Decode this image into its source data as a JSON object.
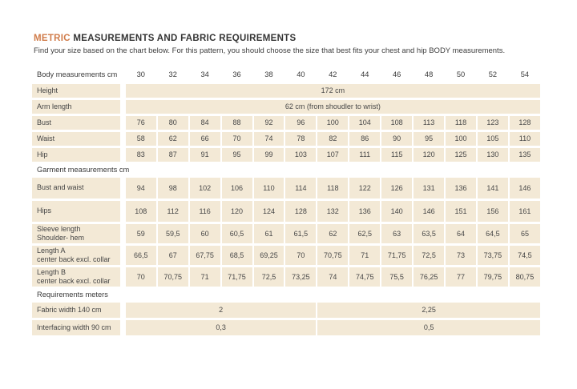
{
  "page": {
    "title_highlight": "METRIC",
    "title_rest": " MEASUREMENTS AND FABRIC REQUIREMENTS",
    "subtitle": "Find your size based on the chart below. For this pattern, you should choose the size that best fits your chest and hip BODY measurements."
  },
  "colors": {
    "accent": "#d07c4a",
    "cell_bg": "#f3e9d6",
    "text": "#3c3c3c"
  },
  "table": {
    "header_label": "Body measurements cm",
    "sizes": [
      "30",
      "32",
      "34",
      "36",
      "38",
      "40",
      "42",
      "44",
      "46",
      "48",
      "50",
      "52",
      "54"
    ],
    "rows": [
      {
        "type": "merged",
        "label": "Height",
        "value": "172 cm"
      },
      {
        "type": "merged",
        "label": "Arm length",
        "value": "62 cm (from shoudler to wrist)"
      },
      {
        "type": "values",
        "label": "Bust",
        "values": [
          "76",
          "80",
          "84",
          "88",
          "92",
          "96",
          "100",
          "104",
          "108",
          "113",
          "118",
          "123",
          "128"
        ]
      },
      {
        "type": "values",
        "label": "Waist",
        "values": [
          "58",
          "62",
          "66",
          "70",
          "74",
          "78",
          "82",
          "86",
          "90",
          "95",
          "100",
          "105",
          "110"
        ]
      },
      {
        "type": "values",
        "label": "Hip",
        "values": [
          "83",
          "87",
          "91",
          "95",
          "99",
          "103",
          "107",
          "111",
          "115",
          "120",
          "125",
          "130",
          "135"
        ]
      },
      {
        "type": "section",
        "label": "Garment measurements cm"
      },
      {
        "type": "values",
        "tall": true,
        "label": "Bust and waist",
        "values": [
          "94",
          "98",
          "102",
          "106",
          "110",
          "114",
          "118",
          "122",
          "126",
          "131",
          "136",
          "141",
          "146"
        ]
      },
      {
        "type": "values",
        "tall": true,
        "label": "Hips",
        "values": [
          "108",
          "112",
          "116",
          "120",
          "124",
          "128",
          "132",
          "136",
          "140",
          "146",
          "151",
          "156",
          "161"
        ]
      },
      {
        "type": "values",
        "label": "Sleeve length",
        "label2": "Shoulder- hem",
        "values": [
          "59",
          "59,5",
          "60",
          "60,5",
          "61",
          "61,5",
          "62",
          "62,5",
          "63",
          "63,5",
          "64",
          "64,5",
          "65"
        ]
      },
      {
        "type": "values",
        "label": "Length A",
        "label2": "center back excl. collar",
        "values": [
          "66,5",
          "67",
          "67,75",
          "68,5",
          "69,25",
          "70",
          "70,75",
          "71",
          "71,75",
          "72,5",
          "73",
          "73,75",
          "74,5"
        ]
      },
      {
        "type": "values",
        "label": "Length B",
        "label2": "center back excl. collar",
        "values": [
          "70",
          "70,75",
          "71",
          "71,75",
          "72,5",
          "73,25",
          "74",
          "74,75",
          "75,5",
          "76,25",
          "77",
          "79,75",
          "80,75"
        ]
      },
      {
        "type": "section",
        "label": "Requirements meters"
      },
      {
        "type": "split",
        "label": "Fabric width 140 cm",
        "values": [
          "2",
          "2,25"
        ],
        "spans": [
          6,
          7
        ]
      },
      {
        "type": "split",
        "label": "Interfacing width 90 cm",
        "values": [
          "0,3",
          "0,5"
        ],
        "spans": [
          6,
          7
        ]
      }
    ]
  }
}
